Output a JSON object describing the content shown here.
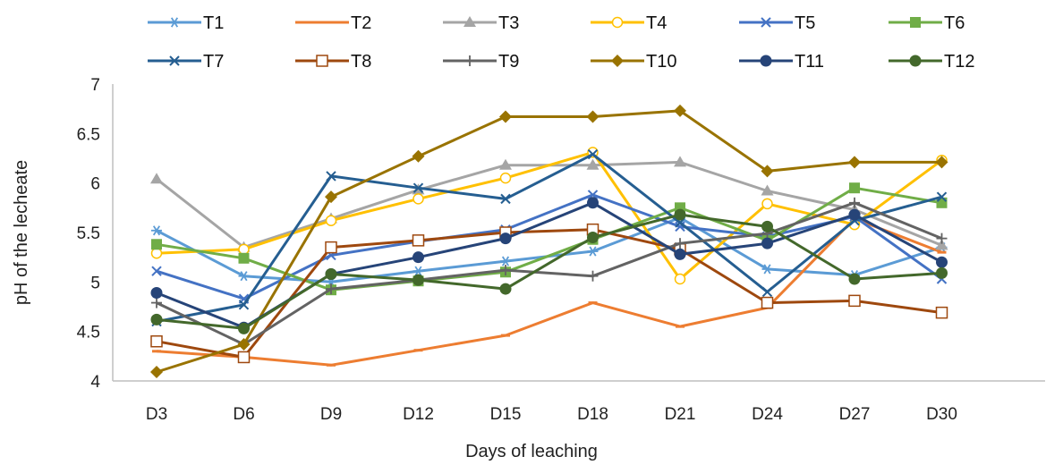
{
  "chart_data": {
    "type": "line",
    "title": "",
    "xlabel": "Days of leaching",
    "ylabel": "pH of the lecheate",
    "categories": [
      "D3",
      "D6",
      "D9",
      "D12",
      "D15",
      "D18",
      "D21",
      "D24",
      "D27",
      "D30"
    ],
    "ylim": [
      4,
      7
    ],
    "yticks": [
      4,
      4.5,
      5,
      5.5,
      6,
      6.5,
      7
    ],
    "ytick_labels": [
      "4",
      "4.5",
      "5",
      "5.5",
      "6",
      "6.5",
      "7"
    ],
    "grid": false,
    "legend_position": "top",
    "series": [
      {
        "name": "T1",
        "color": "#5B9BD5",
        "marker": "asterisk",
        "values": [
          5.52,
          5.06,
          5.0,
          5.11,
          5.21,
          5.31,
          5.65,
          5.13,
          5.07,
          5.35
        ]
      },
      {
        "name": "T2",
        "color": "#ED7D31",
        "marker": "dash",
        "values": [
          4.3,
          4.24,
          4.16,
          4.31,
          4.46,
          4.79,
          4.55,
          4.74,
          5.64,
          5.3
        ]
      },
      {
        "name": "T3",
        "color": "#A5A5A5",
        "marker": "triangle",
        "values": [
          6.04,
          5.35,
          5.64,
          5.93,
          6.18,
          6.18,
          6.21,
          5.92,
          5.73,
          5.37
        ]
      },
      {
        "name": "T4",
        "color": "#FFC000",
        "marker": "open-circle",
        "values": [
          5.29,
          5.33,
          5.62,
          5.84,
          6.05,
          6.31,
          5.03,
          5.79,
          5.58,
          6.23
        ]
      },
      {
        "name": "T5",
        "color": "#4472C4",
        "marker": "x",
        "values": [
          5.11,
          4.83,
          5.27,
          5.41,
          5.53,
          5.88,
          5.56,
          5.46,
          5.66,
          5.03
        ]
      },
      {
        "name": "T6",
        "color": "#70AD47",
        "marker": "square",
        "values": [
          5.38,
          5.24,
          4.92,
          5.01,
          5.1,
          5.43,
          5.75,
          5.42,
          5.95,
          5.8
        ]
      },
      {
        "name": "T7",
        "color": "#255E91",
        "marker": "x",
        "values": [
          4.6,
          4.77,
          6.07,
          5.95,
          5.84,
          6.29,
          5.6,
          4.9,
          5.62,
          5.86
        ]
      },
      {
        "name": "T8",
        "color": "#9E480E",
        "marker": "open-square",
        "values": [
          4.4,
          4.24,
          5.35,
          5.42,
          5.5,
          5.53,
          5.33,
          4.79,
          4.81,
          4.69
        ]
      },
      {
        "name": "T9",
        "color": "#636363",
        "marker": "plus",
        "values": [
          4.79,
          4.37,
          4.93,
          5.02,
          5.12,
          5.06,
          5.39,
          5.49,
          5.8,
          5.44
        ]
      },
      {
        "name": "T10",
        "color": "#997300",
        "marker": "diamond",
        "values": [
          4.09,
          4.37,
          5.86,
          6.27,
          6.67,
          6.67,
          6.73,
          6.12,
          6.21,
          6.21
        ]
      },
      {
        "name": "T11",
        "color": "#264478",
        "marker": "circle",
        "values": [
          4.89,
          4.54,
          5.08,
          5.25,
          5.44,
          5.8,
          5.28,
          5.39,
          5.68,
          5.2
        ]
      },
      {
        "name": "T12",
        "color": "#43682B",
        "marker": "circle",
        "values": [
          4.62,
          4.53,
          5.08,
          5.02,
          4.93,
          5.45,
          5.68,
          5.56,
          5.03,
          5.09
        ]
      }
    ]
  }
}
